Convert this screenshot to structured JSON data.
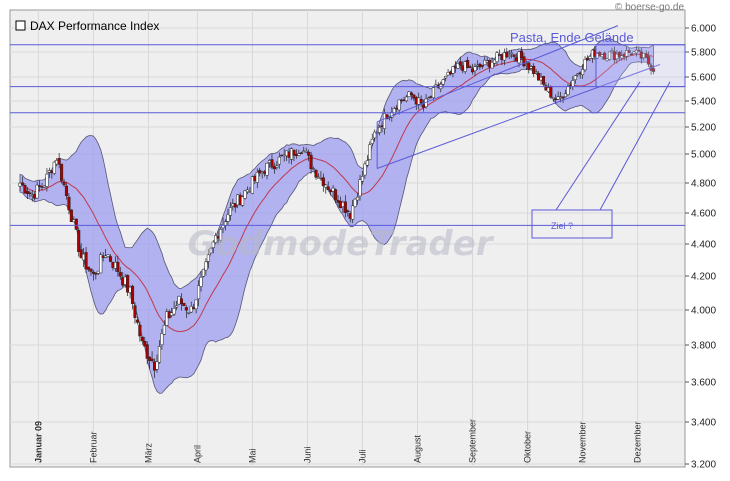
{
  "header": {
    "title": "DAX Performance Index",
    "credit": "© boerse-go.de"
  },
  "watermark": "GodmodeTrader",
  "annotations": {
    "pasta": "Pasta, Ende Gelände",
    "ziel": "Ziel ?"
  },
  "colors": {
    "band_fill": "#9e9ef0",
    "band_edge": "#555577",
    "sma": "#c0384a",
    "candle_up": "#ffffff",
    "candle_down": "#aa0000",
    "annotation": "#5a5ad8",
    "plot_bg": "#efefef",
    "grid": "#d8d8d8"
  },
  "chart_data": {
    "type": "candlestick",
    "title": "DAX Performance Index",
    "y_ticks": [
      "6.000",
      "5.800",
      "5.600",
      "5.400",
      "5.200",
      "5.000",
      "4.800",
      "4.600",
      "4.400",
      "4.200",
      "4.000",
      "3.800",
      "3.600",
      "3.400",
      "3.200"
    ],
    "y_tick_values": [
      6000,
      5800,
      5600,
      5400,
      5200,
      5000,
      4800,
      4600,
      4400,
      4200,
      4000,
      3800,
      3600,
      3400,
      3200
    ],
    "ylim": [
      3200,
      6000
    ],
    "x_ticks": [
      "Januar 09",
      "Februar",
      "März",
      "April",
      "Mai",
      "Juni",
      "Juli",
      "August",
      "September",
      "Oktober",
      "November",
      "Dezember"
    ],
    "x_tick_weeks": [
      1.5,
      6,
      10.5,
      14.5,
      19,
      23.5,
      28,
      32.5,
      37,
      41.5,
      46,
      50.5
    ],
    "week_count": 53,
    "weekly_close": [
      4800,
      4720,
      4800,
      4980,
      4650,
      4320,
      4200,
      4350,
      4240,
      4100,
      3800,
      3700,
      3950,
      4050,
      4000,
      4200,
      4450,
      4600,
      4700,
      4800,
      4900,
      4950,
      5000,
      5050,
      4900,
      4800,
      4700,
      4600,
      4850,
      5150,
      5300,
      5400,
      5450,
      5350,
      5500,
      5600,
      5700,
      5650,
      5700,
      5750,
      5800,
      5750,
      5650,
      5500,
      5400,
      5550,
      5700,
      5800,
      5780,
      5780,
      5800,
      5750,
      5650
    ],
    "series": [
      {
        "name": "Kurs",
        "kind": "candles"
      },
      {
        "name": "SMA",
        "kind": "line"
      },
      {
        "name": "Bollinger",
        "kind": "band"
      }
    ],
    "horizontal_levels": [
      5860,
      5520,
      5310,
      4520
    ],
    "grid": true
  }
}
